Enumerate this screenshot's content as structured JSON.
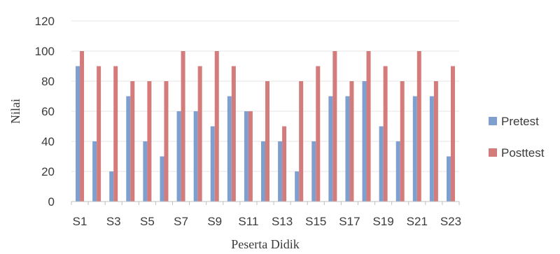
{
  "chart_data": {
    "type": "bar",
    "xlabel": "Peserta Didik",
    "ylabel": "Nilai",
    "ylim": [
      0,
      120
    ],
    "yticks": [
      0,
      20,
      40,
      60,
      80,
      100,
      120
    ],
    "grid": true,
    "legend_position": "right",
    "categories": [
      "S1",
      "S2",
      "S3",
      "S4",
      "S5",
      "S6",
      "S7",
      "S8",
      "S9",
      "S10",
      "S11",
      "S12",
      "S13",
      "S14",
      "S15",
      "S16",
      "S17",
      "S18",
      "S19",
      "S20",
      "S21",
      "S22",
      "S23"
    ],
    "tick_labels_shown": [
      "S1",
      "S3",
      "S5",
      "S7",
      "S9",
      "S11",
      "S13",
      "S15",
      "S17",
      "S19",
      "S21",
      "S23"
    ],
    "series": [
      {
        "name": "Pretest",
        "color": "#7f9fcf",
        "values": [
          90,
          40,
          20,
          70,
          40,
          30,
          60,
          60,
          50,
          70,
          60,
          40,
          40,
          20,
          40,
          70,
          70,
          80,
          50,
          40,
          70,
          70,
          30
        ]
      },
      {
        "name": "Posttest",
        "color": "#d47c7c",
        "values": [
          100,
          90,
          90,
          80,
          80,
          80,
          100,
          90,
          100,
          90,
          60,
          80,
          50,
          80,
          90,
          100,
          80,
          100,
          90,
          80,
          100,
          80,
          90
        ]
      }
    ]
  }
}
